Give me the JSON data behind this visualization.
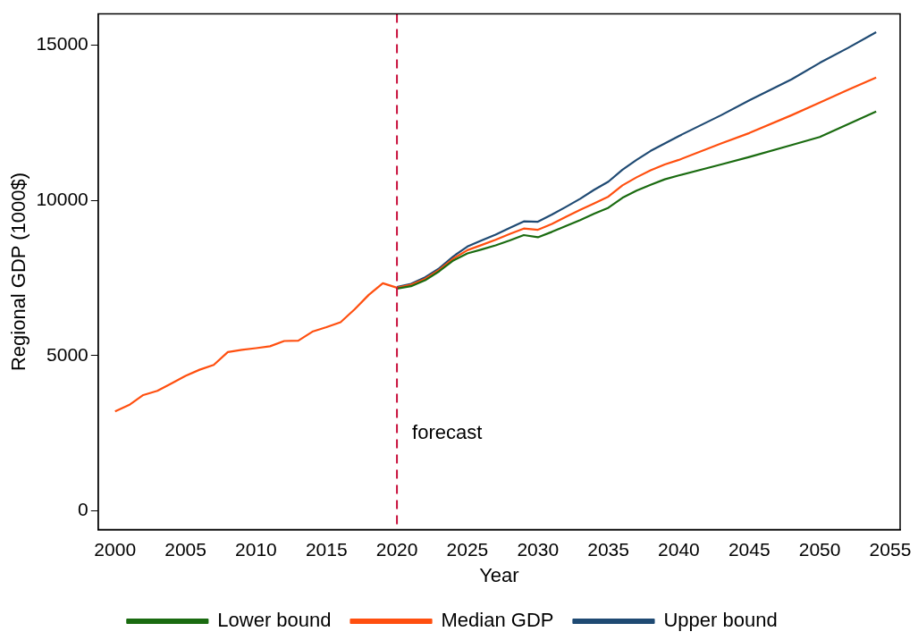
{
  "chart_data": {
    "type": "line",
    "xlabel": "Year",
    "ylabel": "Regional GDP (1000$)",
    "xlim": [
      1998.8,
      2055.7
    ],
    "ylim": [
      -600,
      16000
    ],
    "xticks": [
      2000,
      2005,
      2010,
      2015,
      2020,
      2025,
      2030,
      2035,
      2040,
      2045,
      2050,
      2055
    ],
    "yticks": [
      0,
      5000,
      10000,
      15000
    ],
    "grid": false,
    "legend": "bottom",
    "marker": "none",
    "line_style": "solid",
    "series": [
      {
        "name": "Lower bound",
        "color": "#1a6b10",
        "x": [
          2020,
          2021,
          2022,
          2023,
          2024,
          2025,
          2026,
          2027,
          2028,
          2029,
          2030,
          2031,
          2032,
          2033,
          2034,
          2035,
          2036,
          2037,
          2038,
          2039,
          2040,
          2043,
          2045,
          2048,
          2050,
          2052,
          2054
        ],
        "values": [
          7155,
          7235,
          7425,
          7715,
          8060,
          8290,
          8415,
          8550,
          8705,
          8880,
          8810,
          8985,
          9175,
          9365,
          9570,
          9760,
          10080,
          10310,
          10500,
          10675,
          10800,
          11155,
          11395,
          11780,
          12040,
          12450,
          12860
        ]
      },
      {
        "name": "Median GDP",
        "color": "#ff4f0f",
        "x": [
          2000,
          2001,
          2002,
          2003,
          2004,
          2005,
          2006,
          2007,
          2008,
          2009,
          2010,
          2011,
          2012,
          2013,
          2014,
          2015,
          2016,
          2017,
          2018,
          2019,
          2020,
          2021,
          2022,
          2023,
          2024,
          2025,
          2026,
          2027,
          2028,
          2029,
          2030,
          2031,
          2032,
          2033,
          2034,
          2035,
          2036,
          2037,
          2038,
          2039,
          2040,
          2043,
          2045,
          2048,
          2050,
          2052,
          2054
        ],
        "values": [
          3200,
          3410,
          3730,
          3865,
          4105,
          4345,
          4545,
          4700,
          5115,
          5185,
          5240,
          5300,
          5470,
          5480,
          5770,
          5915,
          6075,
          6490,
          6955,
          7330,
          7185,
          7280,
          7470,
          7760,
          8125,
          8395,
          8560,
          8730,
          8915,
          9090,
          9050,
          9240,
          9470,
          9695,
          9905,
          10120,
          10480,
          10740,
          10965,
          11155,
          11300,
          11830,
          12165,
          12740,
          13145,
          13560,
          13955
        ]
      },
      {
        "name": "Upper bound",
        "color": "#1f4a73",
        "x": [
          2020,
          2021,
          2022,
          2023,
          2024,
          2025,
          2026,
          2027,
          2028,
          2029,
          2030,
          2031,
          2032,
          2033,
          2034,
          2035,
          2036,
          2037,
          2038,
          2039,
          2040,
          2043,
          2045,
          2048,
          2050,
          2052,
          2054
        ],
        "values": [
          7210,
          7310,
          7520,
          7810,
          8195,
          8510,
          8705,
          8895,
          9110,
          9320,
          9310,
          9540,
          9790,
          10050,
          10340,
          10600,
          10985,
          11300,
          11590,
          11830,
          12070,
          12740,
          13220,
          13895,
          14425,
          14905,
          15415
        ]
      }
    ],
    "ref_lines": [
      {
        "axis": "x",
        "value": 2020,
        "label": "forecast",
        "color": "#c8103c",
        "line_style": "dashed"
      }
    ]
  }
}
